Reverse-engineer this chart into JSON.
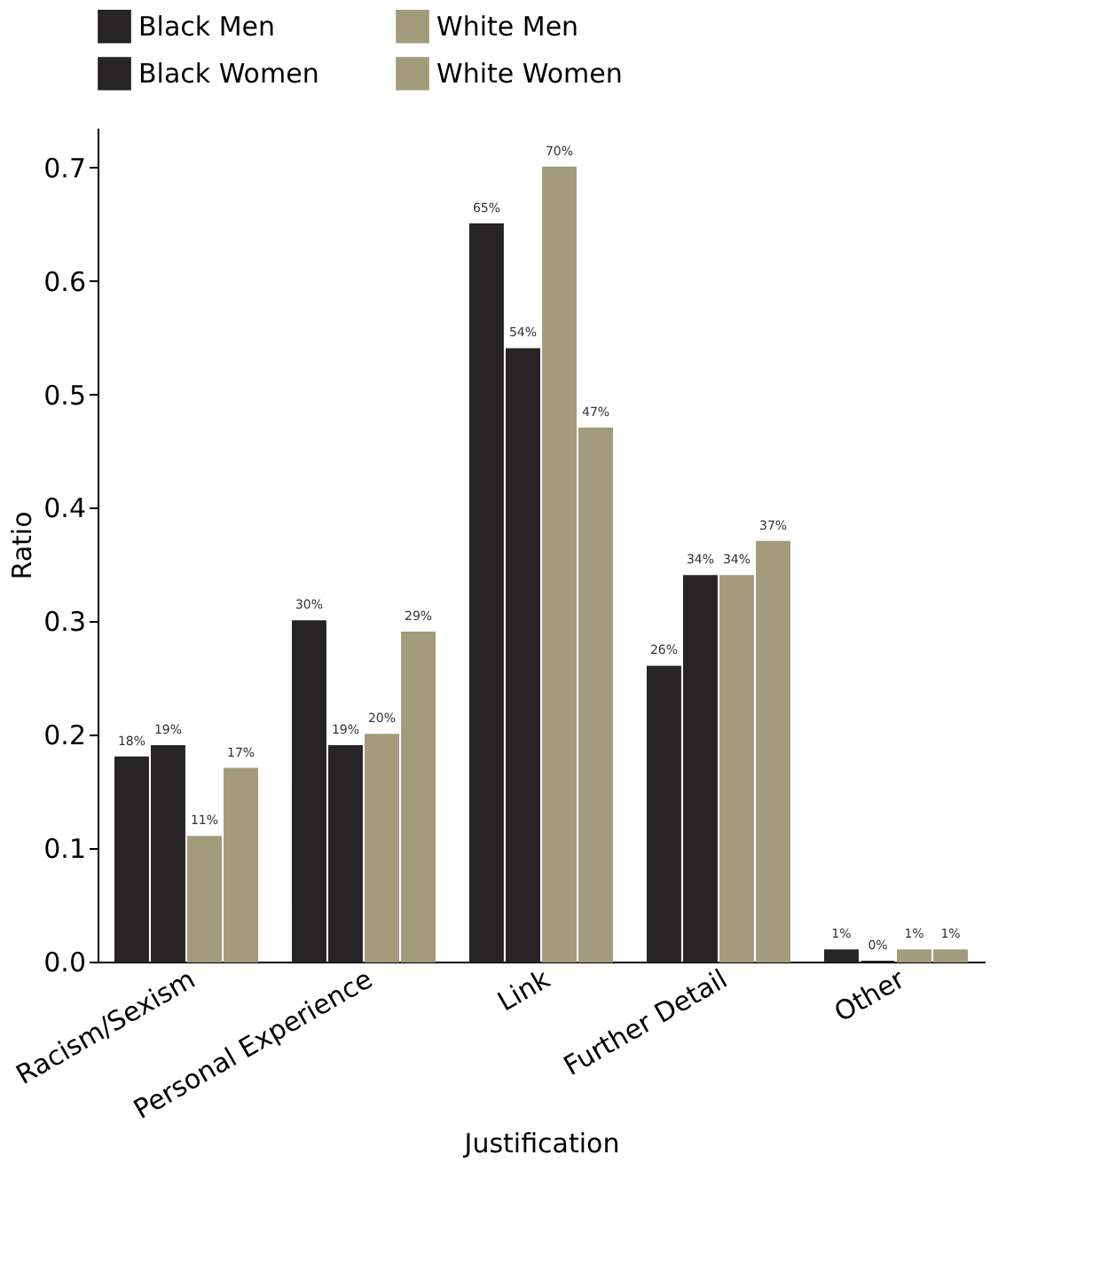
{
  "chart_data": {
    "type": "bar",
    "xlabel": "Justification",
    "ylabel": "Ratio",
    "categories": [
      "Racism/Sexism",
      "Personal Experience",
      "Link",
      "Further Detail",
      "Other"
    ],
    "series": [
      {
        "name": "Black Men",
        "color": "#272425",
        "values": [
          0.18,
          0.3,
          0.65,
          0.26,
          0.01
        ],
        "value_labels": [
          "18%",
          "30%",
          "65%",
          "26%",
          "1%"
        ]
      },
      {
        "name": "Black Women",
        "color": "#272425",
        "values": [
          0.19,
          0.19,
          0.54,
          0.34,
          0.0
        ],
        "value_labels": [
          "19%",
          "19%",
          "54%",
          "34%",
          "0%"
        ]
      },
      {
        "name": "White Men",
        "color": "#a39c7c",
        "values": [
          0.11,
          0.2,
          0.7,
          0.34,
          0.01
        ],
        "value_labels": [
          "11%",
          "20%",
          "70%",
          "34%",
          "1%"
        ]
      },
      {
        "name": "White Women",
        "color": "#a39c7c",
        "values": [
          0.17,
          0.29,
          0.47,
          0.37,
          0.01
        ],
        "value_labels": [
          "17%",
          "29%",
          "47%",
          "37%",
          "1%"
        ]
      }
    ],
    "ylim": [
      0,
      0.735
    ],
    "yticks": [
      {
        "value": 0,
        "label": "0.0"
      },
      0.1,
      0.2,
      0.3,
      0.4,
      0.5,
      0.6,
      0.7
    ],
    "legend": "top",
    "grid": false
  }
}
